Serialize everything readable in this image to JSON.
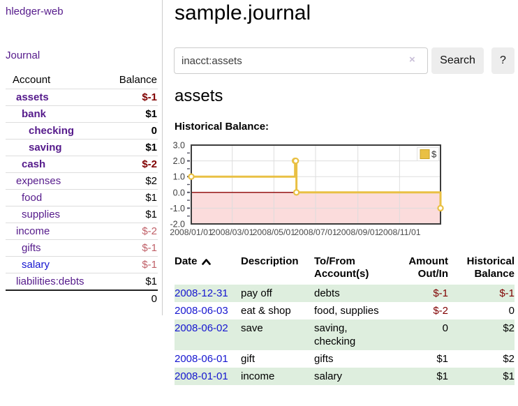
{
  "app": {
    "brand": "hledger-web",
    "nav_journal": "Journal"
  },
  "sidebar": {
    "header": {
      "account": "Account",
      "balance": "Balance"
    },
    "accounts": [
      {
        "name": "assets",
        "balance": "$-1",
        "depth": 1,
        "bold": true,
        "neg": "strong"
      },
      {
        "name": "bank",
        "balance": "$1",
        "depth": 2,
        "bold": true,
        "neg": "none"
      },
      {
        "name": "checking",
        "balance": "0",
        "depth": 3,
        "bold": true,
        "neg": "none"
      },
      {
        "name": "saving",
        "balance": "$1",
        "depth": 3,
        "bold": true,
        "neg": "none"
      },
      {
        "name": "cash",
        "balance": "$-2",
        "depth": 2,
        "bold": true,
        "neg": "strong"
      },
      {
        "name": "expenses",
        "balance": "$2",
        "depth": 1,
        "bold": false,
        "neg": "none"
      },
      {
        "name": "food",
        "balance": "$1",
        "depth": 2,
        "bold": false,
        "neg": "none"
      },
      {
        "name": "supplies",
        "balance": "$1",
        "depth": 2,
        "bold": false,
        "neg": "none"
      },
      {
        "name": "income",
        "balance": "$-2",
        "depth": 1,
        "bold": false,
        "neg": "soft"
      },
      {
        "name": "gifts",
        "balance": "$-1",
        "depth": 2,
        "bold": false,
        "neg": "soft"
      },
      {
        "name": "salary",
        "balance": "$-1",
        "depth": 2,
        "bold": false,
        "neg": "soft",
        "unvisited": true
      },
      {
        "name": "liabilities:debts",
        "balance": "$1",
        "depth": 1,
        "bold": false,
        "neg": "none"
      }
    ],
    "total": "0"
  },
  "header": {
    "title": "sample.journal"
  },
  "search": {
    "value": "inacct:assets",
    "clear_label": "×",
    "button_label": "Search",
    "help_label": "?"
  },
  "account_page": {
    "title": "assets",
    "chart_label": "Historical Balance:"
  },
  "chart_data": {
    "type": "line",
    "title": "Historical Balance:",
    "interpolation": "step-after",
    "x_range": [
      "2008-01-01",
      "2008-12-31"
    ],
    "ylim": [
      -2.0,
      3.0
    ],
    "y_ticks": [
      {
        "value": 3.0,
        "label": "3.0"
      },
      {
        "value": 2.0,
        "label": "2.0"
      },
      {
        "value": 1.0,
        "label": "1.0"
      },
      {
        "value": 0.0,
        "label": "0.0"
      },
      {
        "value": -1.0,
        "label": "-1.0"
      },
      {
        "value": -2.0,
        "label": "-2.0"
      }
    ],
    "x_ticks": [
      {
        "date": "2008-01-01",
        "label": "2008/01/01"
      },
      {
        "date": "2008-03-01",
        "label": "2008/03/01"
      },
      {
        "date": "2008-05-01",
        "label": "2008/05/01"
      },
      {
        "date": "2008-07-01",
        "label": "2008/07/01"
      },
      {
        "date": "2008-09-01",
        "label": "2008/09/01"
      },
      {
        "date": "2008-11-01",
        "label": "2008/11/01"
      }
    ],
    "series": [
      {
        "name": "$",
        "color": "#E9C044",
        "marker": "open-circle",
        "points": [
          {
            "date": "2008-01-01",
            "value": 1.0
          },
          {
            "date": "2008-06-01",
            "value": 2.0
          },
          {
            "date": "2008-06-02",
            "value": 2.0
          },
          {
            "date": "2008-06-03",
            "value": 0.0
          },
          {
            "date": "2008-12-31",
            "value": -1.0
          }
        ]
      }
    ],
    "legend_position": "top-right",
    "grid": true,
    "negative_region_color": "#FBDCDC",
    "zero_line_color": "#8B0000"
  },
  "register": {
    "columns": [
      {
        "lines": [
          "Date"
        ],
        "align": "left",
        "sortable": true
      },
      {
        "lines": [
          "Description"
        ],
        "align": "left"
      },
      {
        "lines": [
          "To/From",
          "Account(s)"
        ],
        "align": "left"
      },
      {
        "lines": [
          "Amount",
          "Out/In"
        ],
        "align": "right"
      },
      {
        "lines": [
          "Historical",
          "Balance"
        ],
        "align": "right"
      }
    ],
    "rows": [
      {
        "date": "2008-12-31",
        "description": "pay off",
        "accounts": "debts",
        "amount": "$-1",
        "amount_neg": true,
        "balance": "$-1",
        "balance_neg": true
      },
      {
        "date": "2008-06-03",
        "description": "eat & shop",
        "accounts": "food, supplies",
        "amount": "$-2",
        "amount_neg": true,
        "balance": "0",
        "balance_neg": false
      },
      {
        "date": "2008-06-02",
        "description": "save",
        "accounts": "saving,\nchecking",
        "amount": "0",
        "amount_neg": false,
        "balance": "$2",
        "balance_neg": false
      },
      {
        "date": "2008-06-01",
        "description": "gift",
        "accounts": "gifts",
        "amount": "$1",
        "amount_neg": false,
        "balance": "$2",
        "balance_neg": false
      },
      {
        "date": "2008-01-01",
        "description": "income",
        "accounts": "salary",
        "amount": "$1",
        "amount_neg": false,
        "balance": "$1",
        "balance_neg": false
      }
    ]
  }
}
